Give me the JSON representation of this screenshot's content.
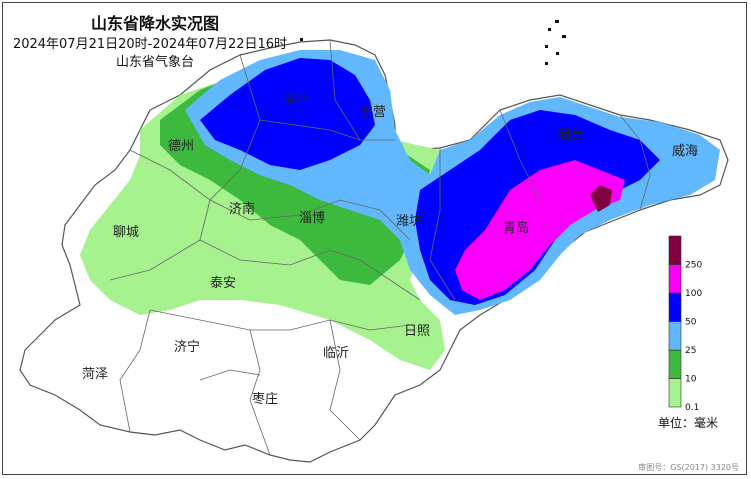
{
  "map": {
    "title": "山东省降水实况图",
    "period": "2024年07月21日20时-2024年07月22日16时",
    "agency": "山东省气象台",
    "approval_number": "审图号：GS(2017) 3320号",
    "unit_label": "单位：毫米"
  },
  "cities": [
    {
      "name": "滨州"
    },
    {
      "name": "东营"
    },
    {
      "name": "烟台"
    },
    {
      "name": "威海"
    },
    {
      "name": "德州"
    },
    {
      "name": "济南"
    },
    {
      "name": "淄博"
    },
    {
      "name": "潍坊"
    },
    {
      "name": "青岛"
    },
    {
      "name": "聊城"
    },
    {
      "name": "泰安"
    },
    {
      "name": "日照"
    },
    {
      "name": "济宁"
    },
    {
      "name": "临沂"
    },
    {
      "name": "菏泽"
    },
    {
      "name": "枣庄"
    }
  ],
  "legend": {
    "thresholds": [
      "0.1",
      "10",
      "25",
      "50",
      "100",
      "250"
    ],
    "colors": [
      "#a6f28f",
      "#3dba3d",
      "#61b8ff",
      "#0000ff",
      "#fa00fa",
      "#800040"
    ]
  }
}
